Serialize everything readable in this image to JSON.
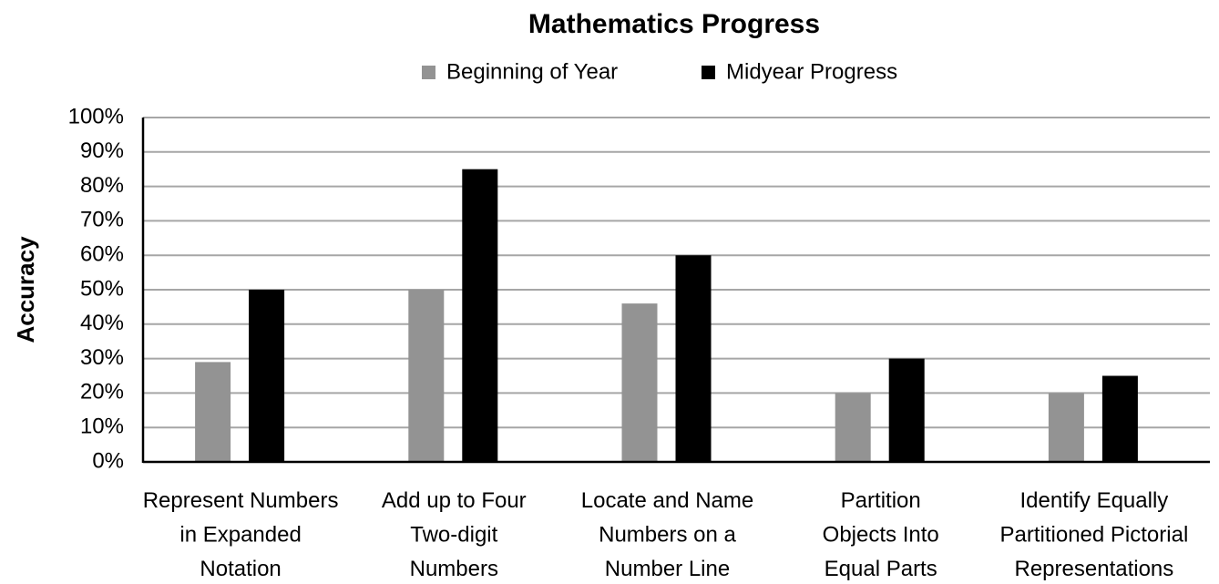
{
  "chart_data": {
    "type": "bar",
    "title": "Mathematics Progress",
    "y_label": "Accuracy",
    "categories": [
      "Represent Numbers\nin Expanded\nNotation",
      "Add up to Four\nTwo-digit\nNumbers",
      "Locate and Name\nNumbers on a\nNumber Line",
      "Partition\nObjects Into\nEqual Parts",
      "Identify Equally\nPartitioned Pictorial\nRepresentations"
    ],
    "series": [
      {
        "name": "Beginning of Year",
        "color": "#939393",
        "values": [
          29,
          50,
          46,
          20,
          20
        ]
      },
      {
        "name": "Midyear Progress",
        "color": "#000000",
        "values": [
          50,
          85,
          60,
          30,
          25
        ]
      }
    ],
    "ylim": [
      0,
      100
    ],
    "yticks": [
      {
        "value": 0,
        "label": "0%"
      },
      {
        "value": 10,
        "label": "10%"
      },
      {
        "value": 20,
        "label": "20%"
      },
      {
        "value": 30,
        "label": "30%"
      },
      {
        "value": 40,
        "label": "40%"
      },
      {
        "value": 50,
        "label": "50%"
      },
      {
        "value": 60,
        "label": "60%"
      },
      {
        "value": 70,
        "label": "70%"
      },
      {
        "value": 80,
        "label": "80%"
      },
      {
        "value": 90,
        "label": "90%"
      },
      {
        "value": 100,
        "label": "100%"
      }
    ],
    "grid": true,
    "legend": "top"
  }
}
